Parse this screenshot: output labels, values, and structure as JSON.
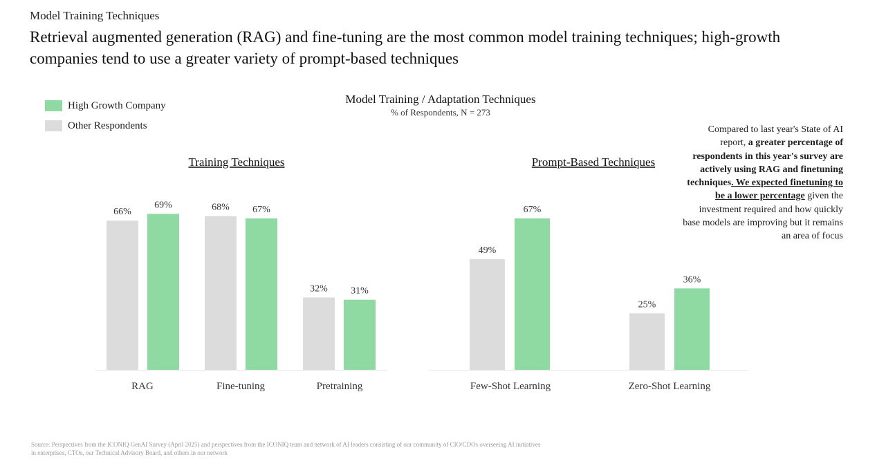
{
  "header": {
    "eyebrow": "Model Training Techniques",
    "headline": "Retrieval augmented generation (RAG) and fine-tuning are the most common model training techniques; high-growth companies tend to use a greater variety of prompt-based techniques"
  },
  "legend": {
    "items": [
      {
        "label": "High Growth Company",
        "color": "#8fd9a3"
      },
      {
        "label": "Other Respondents",
        "color": "#dcdcdc"
      }
    ]
  },
  "chart_data": {
    "type": "bar",
    "title": "Model Training / Adaptation Techniques",
    "subtitle": "% of Respondents, N = 273",
    "legend_position": "top-left",
    "grid": false,
    "ylim": [
      0,
      100
    ],
    "panels": [
      {
        "title": "Training Techniques",
        "categories": [
          "RAG",
          "Fine-tuning",
          "Pretraining"
        ],
        "series": [
          {
            "name": "Other Respondents",
            "values": [
              66,
              68,
              32
            ],
            "labels": [
              "66%",
              "68%",
              "32%"
            ],
            "color": "#dcdcdc"
          },
          {
            "name": "High Growth Company",
            "values": [
              69,
              67,
              31
            ],
            "labels": [
              "69%",
              "67%",
              "31%"
            ],
            "color": "#8fd9a3"
          }
        ]
      },
      {
        "title": "Prompt-Based Techniques",
        "categories": [
          "Few-Shot Learning",
          "Zero-Shot Learning"
        ],
        "series": [
          {
            "name": "Other Respondents",
            "values": [
              49,
              25
            ],
            "labels": [
              "49%",
              "25%"
            ],
            "color": "#dcdcdc"
          },
          {
            "name": "High Growth Company",
            "values": [
              67,
              36
            ],
            "labels": [
              "67%",
              "36%"
            ],
            "color": "#8fd9a3"
          }
        ]
      }
    ]
  },
  "note": {
    "part1": "Compared to last year's State of AI report, ",
    "part2": "a greater percentage of respondents in this year's survey are actively using RAG and finetuning techniques",
    "part3": ". We expected finetuning to be a lower percentage",
    "part4": " given the investment required and how quickly base models are improving but it remains an area of focus"
  },
  "source": "Source: Perspectives from the ICONIQ GenAI Survey (April 2025) and perspectives from the ICONIQ team and network of AI leaders consisting of our community of CIO/CDOs overseeing AI initiatives in enterprises, CTOs, our Technical Advisory Board, and others in our network"
}
